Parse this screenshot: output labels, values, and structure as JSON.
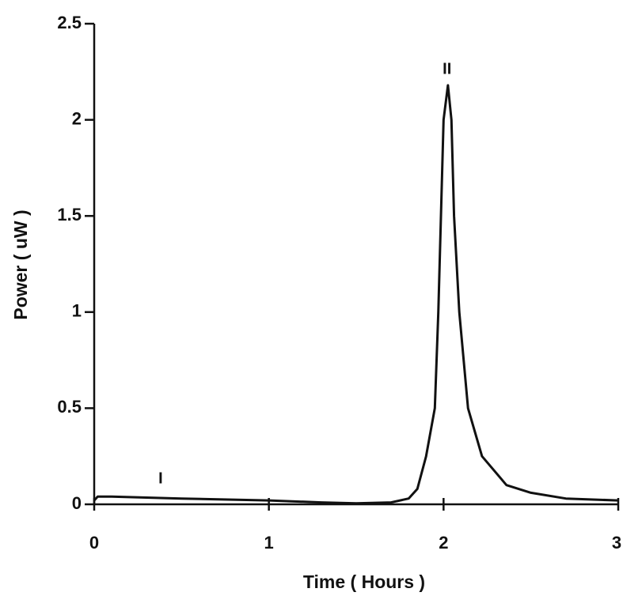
{
  "chart_data": {
    "type": "line",
    "x_label": "Time ( Hours )",
    "y_label": "Power ( uW )",
    "xlim": [
      0,
      3
    ],
    "ylim": [
      0,
      2.5
    ],
    "xticks": [
      0,
      1,
      2,
      3
    ],
    "yticks": [
      0,
      0.5,
      1,
      1.5,
      2,
      2.5
    ],
    "series": [
      {
        "color": "#111111",
        "x": [
          0,
          0.02,
          0.1,
          0.5,
          1,
          1.3,
          1.5,
          1.7,
          1.8,
          1.85,
          1.9,
          1.95,
          1.97,
          1.985,
          2,
          2.025,
          2.045,
          2.06,
          2.09,
          2.14,
          2.22,
          2.36,
          2.5,
          2.7,
          3
        ],
        "values": [
          0.02,
          0.04,
          0.04,
          0.03,
          0.02,
          0.01,
          0.005,
          0.01,
          0.03,
          0.08,
          0.25,
          0.5,
          1.0,
          1.5,
          2.0,
          2.18,
          2.0,
          1.5,
          1.0,
          0.5,
          0.25,
          0.1,
          0.06,
          0.03,
          0.02
        ]
      }
    ],
    "annotations": [
      {
        "text": "I",
        "x": 0.38,
        "y": 0.13
      },
      {
        "text": "II",
        "x": 2.02,
        "y": 2.26
      }
    ]
  }
}
